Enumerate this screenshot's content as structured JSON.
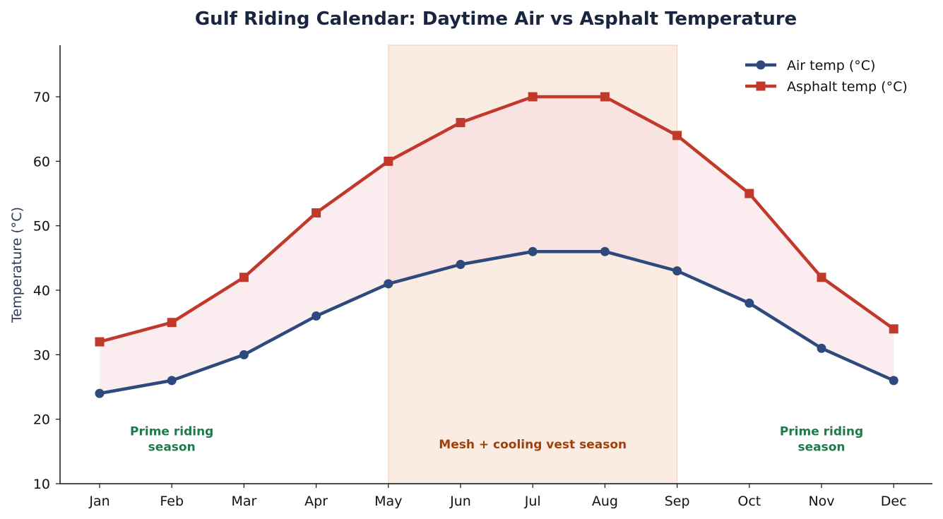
{
  "chart_data": {
    "type": "line",
    "title": "Gulf Riding Calendar: Daytime Air vs Asphalt Temperature",
    "xlabel": "",
    "ylabel": "Temperature (°C)",
    "categories": [
      "Jan",
      "Feb",
      "Mar",
      "Apr",
      "May",
      "Jun",
      "Jul",
      "Aug",
      "Sep",
      "Oct",
      "Nov",
      "Dec"
    ],
    "ylim": [
      10,
      78
    ],
    "yticks": [
      10,
      20,
      30,
      40,
      50,
      60,
      70
    ],
    "grid": false,
    "legend_position": "top-right",
    "series": [
      {
        "name": "Air temp (°C)",
        "values": [
          24,
          26,
          30,
          36,
          41,
          44,
          46,
          46,
          43,
          38,
          31,
          26
        ],
        "color": "#2e4a7d",
        "marker": "circle"
      },
      {
        "name": "Asphalt temp (°C)",
        "values": [
          32,
          35,
          42,
          52,
          60,
          66,
          70,
          70,
          64,
          55,
          42,
          34
        ],
        "color": "#c0392b",
        "marker": "square"
      }
    ],
    "fill_between": {
      "color": "#f6dde2"
    },
    "shaded_region": {
      "from": "May",
      "to": "Sep",
      "color": "#f5d5bf"
    },
    "annotations": [
      {
        "text_lines": [
          "Prime riding",
          "season"
        ],
        "x": "Feb",
        "y": 17.5,
        "color": "#1e7a4a"
      },
      {
        "text_lines": [
          "Mesh + cooling vest season"
        ],
        "x": "Jul",
        "y": 15.5,
        "color": "#a0400a"
      },
      {
        "text_lines": [
          "Prime riding",
          "season"
        ],
        "x": "Nov",
        "y": 17.5,
        "color": "#1e7a4a"
      }
    ]
  }
}
